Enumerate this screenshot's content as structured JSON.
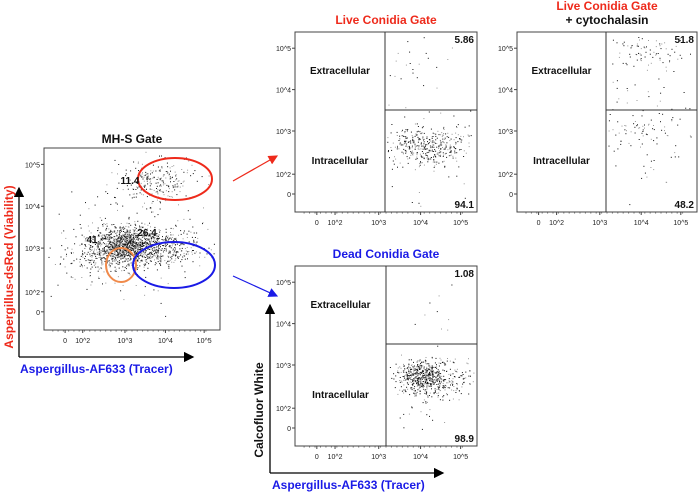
{
  "colors": {
    "red": "#ee2a1b",
    "blue": "#1a1ae6",
    "orange": "#f08a4b",
    "black": "#111111"
  },
  "chart_data": [
    {
      "type": "scatter",
      "id": "mhs",
      "title": "MH-S Gate",
      "title_color": "#111111",
      "xlabel": "Aspergillus-AF633 (Tracer)",
      "ylabel": "Aspergillus-dsRed (Viability)",
      "x_ticks": [
        "0",
        "10^2",
        "10^3",
        "10^4",
        "10^5"
      ],
      "y_ticks": [
        "10^5",
        "10^4",
        "10^3",
        "10^2",
        "0"
      ],
      "x_scale": "biexponential",
      "y_scale": "biexponential",
      "gates": [
        {
          "name": "live",
          "shape": "ellipse",
          "color": "#ee2a1b",
          "percent": "11.4"
        },
        {
          "name": "uninfected",
          "shape": "ellipse",
          "color": "#f08a4b",
          "percent": "41"
        },
        {
          "name": "dead",
          "shape": "ellipse",
          "color": "#1a1ae6",
          "percent": "26.4"
        }
      ]
    },
    {
      "type": "scatter",
      "id": "live",
      "title": "Live Conidia Gate",
      "title_color": "#ee2a1b",
      "x_ticks": [
        "0",
        "10^2",
        "10^3",
        "10^4",
        "10^5"
      ],
      "y_ticks": [
        "10^5",
        "10^4",
        "10^3",
        "10^2",
        "0"
      ],
      "quadrants": [
        {
          "label": "Extracellular",
          "percent": "5.86"
        },
        {
          "label": "Intracellular",
          "percent": "94.1"
        }
      ]
    },
    {
      "type": "scatter",
      "id": "cyto",
      "title": "Live Conidia Gate",
      "title_color": "#ee2a1b",
      "subtitle": "+ cytochalasin",
      "x_ticks": [
        "0",
        "10^2",
        "10^3",
        "10^4",
        "10^5"
      ],
      "y_ticks": [
        "10^5",
        "10^4",
        "10^3",
        "10^2",
        "0"
      ],
      "quadrants": [
        {
          "label": "Extracellular",
          "percent": "51.8"
        },
        {
          "label": "Intracellular",
          "percent": "48.2"
        }
      ]
    },
    {
      "type": "scatter",
      "id": "dead",
      "title": "Dead Conidia Gate",
      "title_color": "#1a1ae6",
      "xlabel": "Aspergillus-AF633 (Tracer)",
      "ylabel": "Calcofluor White",
      "x_ticks": [
        "0",
        "10^2",
        "10^3",
        "10^4",
        "10^5"
      ],
      "y_ticks": [
        "10^5",
        "10^4",
        "10^3",
        "10^2",
        "0"
      ],
      "quadrants": [
        {
          "label": "Extracellular",
          "percent": "1.08"
        },
        {
          "label": "Intracellular",
          "percent": "98.9"
        }
      ]
    }
  ]
}
